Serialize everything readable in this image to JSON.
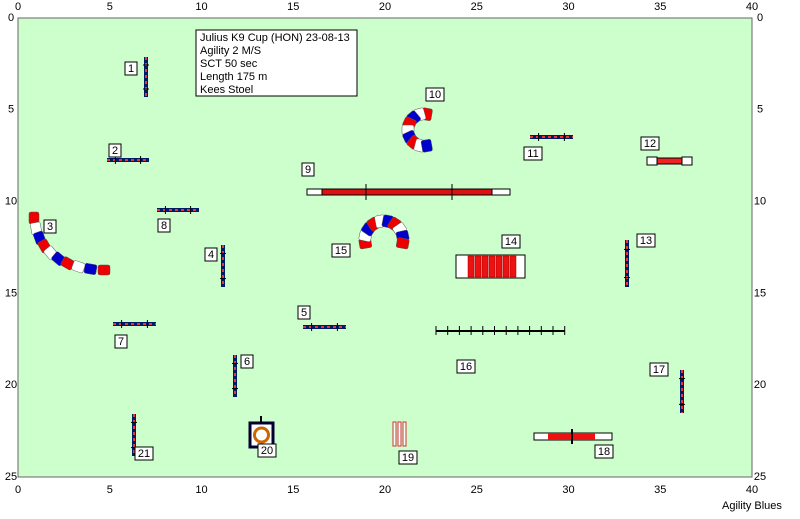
{
  "info": {
    "lines": [
      "Julius K9 Cup (HON) 23-08-13",
      "Agility 2 M/S",
      "SCT 50 sec",
      "Length 175 m",
      "Kees Stoel"
    ]
  },
  "axes": {
    "x_labels": [
      "0",
      "5",
      "10",
      "15",
      "20",
      "25",
      "30",
      "35",
      "40"
    ],
    "y_labels": [
      "0",
      "5",
      "10",
      "15",
      "20",
      "25"
    ]
  },
  "obstacles": [
    "1",
    "2",
    "3",
    "4",
    "5",
    "6",
    "7",
    "8",
    "9",
    "10",
    "11",
    "12",
    "13",
    "14",
    "15",
    "16",
    "17",
    "18",
    "19",
    "20",
    "21"
  ],
  "footer": "Agility Blues"
}
